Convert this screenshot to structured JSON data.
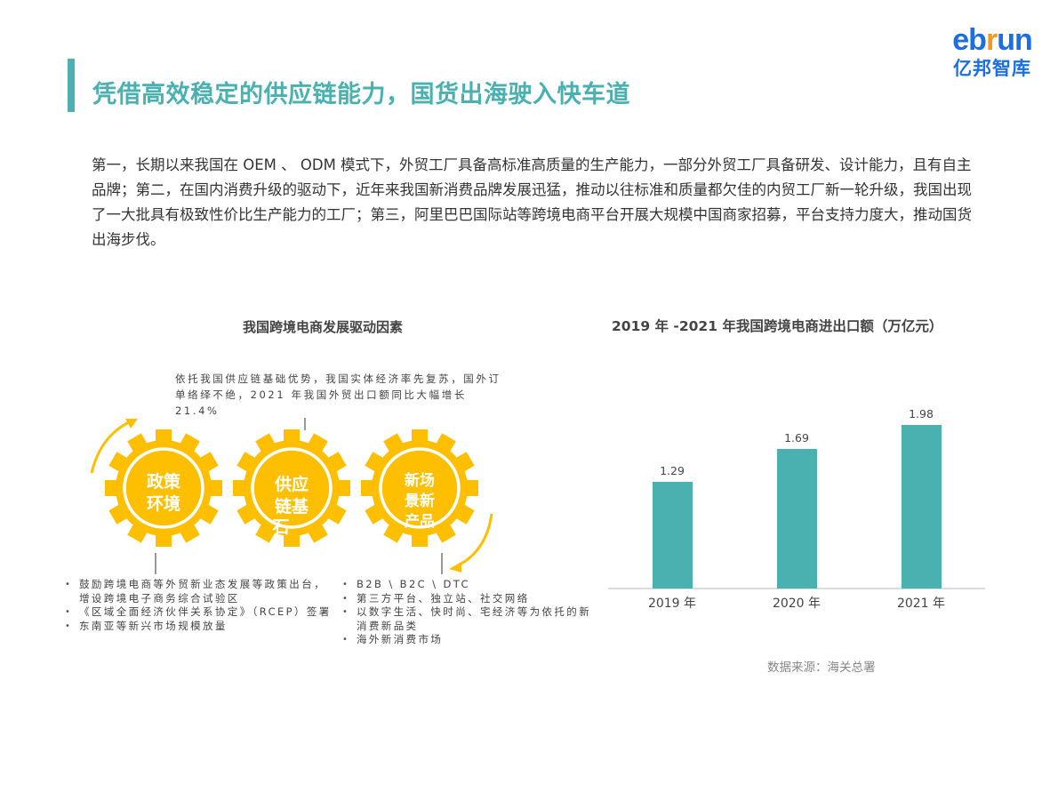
{
  "logo": {
    "brand_en_prefix": "eb",
    "brand_en_accent": "r",
    "brand_en_suffix": "un",
    "brand_cn": "亿邦智库"
  },
  "page": {
    "title": "凭借高效稳定的供应链能力，国货出海驶入快车道",
    "intro": "第一，长期以来我国在 OEM 、 ODM 模式下，外贸工厂具备高标准高质量的生产能力，一部分外贸工厂具备研发、设计能力，且有自主品牌；第二，在国内消费升级的驱动下，近年来我国新消费品牌发展迅猛，推动以往标准和质量都欠佳的内贸工厂新一轮升级，我国出现了一大批具有极致性价比生产能力的工厂；第三，阿里巴巴国际站等跨境电商平台开展大规模中国商家招募，平台支持力度大，推动国货出海步伐。"
  },
  "diagram": {
    "title": "我国跨境电商发展驱动因素",
    "top_note": "依托我国供应链基础优势，我国实体经济率先复苏，国外订单络绎不绝，2021 年我国外贸出口额同比大幅增长 21.4%",
    "gear_color": "#fdbf00",
    "gears": [
      {
        "line1": "政策",
        "line2": "环境",
        "line3": ""
      },
      {
        "line1": "供应",
        "line2": "链基",
        "line3": "石"
      },
      {
        "line1": "新场",
        "line2": "景新",
        "line3": "产品"
      }
    ],
    "left_bullets": [
      "鼓励跨境电商等外贸新业态发展等政策出台，增设跨境电子商务综合试验区",
      "《区域全面经济伙伴关系协定》（RCEP）签署",
      "东南亚等新兴市场规模放量"
    ],
    "right_bullets": [
      "B2B \\ B2C \\ DTC",
      "第三方平台、独立站、社交网络",
      "以数字生活、快时尚、宅经济等为依托的新消费新品类",
      "海外新消费市场"
    ]
  },
  "chart_data": {
    "type": "bar",
    "title": "2019 年 -2021 年我国跨境电商进出口额（万亿元）",
    "categories": [
      "2019 年",
      "2020 年",
      "2021 年"
    ],
    "values": [
      1.29,
      1.69,
      1.98
    ],
    "value_labels": [
      "1.29",
      "1.69",
      "1.98"
    ],
    "xlabel": "",
    "ylabel": "万亿元",
    "ylim": [
      0,
      2.0
    ],
    "grid": false,
    "legend": "none",
    "bar_color": "#4ab0b0",
    "source": "数据来源：海关总署"
  }
}
